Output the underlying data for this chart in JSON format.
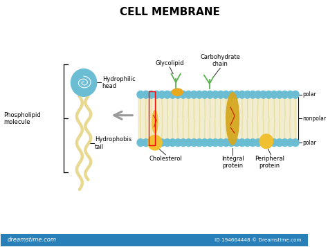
{
  "title": "CELL MEMBRANE",
  "title_fontsize": 11,
  "title_fontweight": "bold",
  "bg_color": "#ffffff",
  "fig_width": 4.74,
  "fig_height": 3.57,
  "dpi": 100,
  "head_color": "#6bbdd4",
  "tail_color": "#e8d890",
  "bilayer_fill": "#f0edd0",
  "cholesterol_color": "#f0c030",
  "integral_protein_color": "#d4a820",
  "glycolipid_color": "#5ab050",
  "carbohydrate_color": "#5ab050",
  "orange_mark_color": "#cc4400",
  "labels": {
    "phospholipid": "Phospholipid\nmolecule",
    "hydrophilic_head": "Hydrophilic\nhead",
    "hydrophobic_tail": "Hydrophobis\ntail",
    "glycolipid": "Glycolipid",
    "carbohydrate": "Carbohydrate\nchain",
    "cholesterol": "Cholesterol",
    "integral_protein": "Integral\nprotein",
    "peripheral_protein": "Peripheral\nprotein",
    "polar_top": "polar",
    "nonpolar": "nonpolar",
    "polar_bottom": "polar"
  },
  "watermark": "dreamstime.com",
  "watermark_id": "ID 194664448 © Dreamstime.com"
}
